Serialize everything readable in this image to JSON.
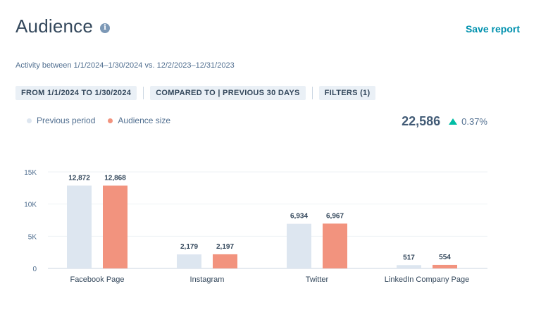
{
  "header": {
    "title": "Audience",
    "info_icon": "info-icon",
    "save_report_label": "Save report"
  },
  "subtitle": "Activity between 1/1/2024–1/30/2024 vs. 12/2/2023–12/31/2023",
  "filters": {
    "date_range": "FROM 1/1/2024 TO 1/30/2024",
    "compared_to": "COMPARED TO | PREVIOUS 30 DAYS",
    "filters": "FILTERS (1)"
  },
  "kpi": {
    "value": "22,586",
    "change": "0.37%",
    "direction": "up",
    "arrow_color": "#00bda5"
  },
  "colors": {
    "previous": "#dde6f0",
    "current": "#f2937e"
  },
  "chart_data": {
    "type": "bar",
    "categories": [
      "Facebook Page",
      "Instagram",
      "Twitter",
      "LinkedIn Company Page"
    ],
    "series": [
      {
        "name": "Previous period",
        "values": [
          12872,
          2179,
          6934,
          517
        ],
        "labels": [
          "12,872",
          "2,179",
          "6,934",
          "517"
        ]
      },
      {
        "name": "Audience size",
        "values": [
          12868,
          2197,
          6967,
          554
        ],
        "labels": [
          "12,868",
          "2,197",
          "6,967",
          "554"
        ]
      }
    ],
    "ylim": [
      0,
      15000
    ],
    "yticks": [
      0,
      5000,
      10000,
      15000
    ],
    "ytick_labels": [
      "0",
      "5K",
      "10K",
      "15K"
    ],
    "legend": "top-left",
    "grid": true
  }
}
